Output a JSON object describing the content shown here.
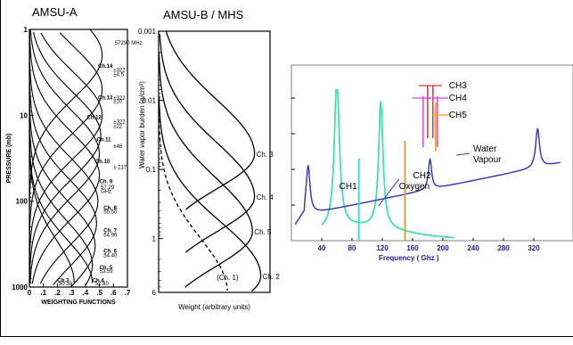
{
  "chart_data": [
    {
      "id": "amsu-a",
      "type": "line",
      "title": "AMSU-A",
      "xlabel": "WEIGHTING FUNCTIONS",
      "ylabel": "PRESSURE (mb)",
      "x_ticks": [
        "0",
        ".1",
        ".2",
        ".3",
        ".4",
        ".5",
        ".6",
        ".7"
      ],
      "y_ticks": [
        "1",
        "10",
        "100",
        "1000"
      ],
      "xlim": [
        0,
        0.7
      ],
      "ylim": [
        1000,
        1
      ],
      "y_scale": "log",
      "series": [
        {
          "name": "Ch.14",
          "peak_p": 2,
          "peak_w": 0.52
        },
        {
          "name": "Ch.13",
          "peak_p": 5,
          "peak_w": 0.52
        },
        {
          "name": "Ch.12",
          "peak_p": 10,
          "peak_w": 0.52
        },
        {
          "name": "Ch.11",
          "peak_p": 17,
          "peak_w": 0.51
        },
        {
          "name": "Ch.10",
          "peak_p": 28,
          "peak_w": 0.5
        },
        {
          "name": "Ch.9",
          "peak_p": 50,
          "peak_w": 0.5
        },
        {
          "name": "Ch.8",
          "peak_p": 100,
          "peak_w": 0.49
        },
        {
          "name": "Ch.7",
          "peak_p": 180,
          "peak_w": 0.48
        },
        {
          "name": "Ch.6",
          "peak_p": 330,
          "peak_w": 0.47
        },
        {
          "name": "Ch.5",
          "peak_p": 550,
          "peak_w": 0.45
        },
        {
          "name": "Ch.4",
          "peak_p": 900,
          "peak_w": 0.45
        },
        {
          "name": "Ch.3",
          "peak_p": 900,
          "peak_w": 0.32
        }
      ],
      "labels": [
        {
          "text": "Ch.14",
          "p": 2.8,
          "w": 0.49
        },
        {
          "text": "Ch.13",
          "p": 6.5,
          "w": 0.49
        },
        {
          "text": "Ch.12",
          "p": 11,
          "w": 0.41
        },
        {
          "text": "Ch.11",
          "p": 20,
          "w": 0.48
        },
        {
          "text": "Ch.10",
          "p": 36,
          "w": 0.47
        },
        {
          "text": "Ch. 9",
          "p": 62,
          "w": 0.5
        },
        {
          "text": "Ch. 8",
          "p": 125,
          "w": 0.53
        },
        {
          "text": "Ch. 7",
          "p": 230,
          "w": 0.53
        },
        {
          "text": "Ch. 6",
          "p": 400,
          "w": 0.53
        },
        {
          "text": "Ch. 5",
          "p": 620,
          "w": 0.5
        },
        {
          "text": "Ch.3",
          "p": 880,
          "w": 0.2
        },
        {
          "text": "Ch.4",
          "p": 880,
          "w": 0.45
        }
      ],
      "annotations": [
        {
          "text": "57290 MHz",
          "p": 1.5,
          "w": 0.61
        },
        {
          "text": "±322",
          "p": 3.1,
          "w": 0.6
        },
        {
          "text": "±4.5",
          "p": 3.5,
          "w": 0.6
        },
        {
          "text": "±322",
          "p": 6.6,
          "w": 0.6
        },
        {
          "text": "±10",
          "p": 7.2,
          "w": 0.6
        },
        {
          "text": "±322",
          "p": 12.5,
          "w": 0.6
        },
        {
          "text": "±22",
          "p": 14,
          "w": 0.6
        },
        {
          "text": "±48",
          "p": 24,
          "w": 0.6
        },
        {
          "text": "± 217",
          "p": 42,
          "w": 0.6
        },
        {
          "text": "57.29",
          "p": 72,
          "w": 0.51
        },
        {
          "text": "GHz",
          "p": 80,
          "w": 0.51
        },
        {
          "text": "55.50",
          "p": 140,
          "w": 0.53
        },
        {
          "text": "54.96",
          "p": 260,
          "w": 0.53
        },
        {
          "text": "54.40",
          "p": 450,
          "w": 0.53
        },
        {
          "text": "53.59",
          "p": 680,
          "w": 0.5
        },
        {
          "text": "52.80",
          "p": 950,
          "w": 0.47
        },
        {
          "text": "50.30",
          "p": 950,
          "w": 0.21
        }
      ]
    },
    {
      "id": "amsu-b",
      "type": "line",
      "title": "AMSU-B / MHS",
      "xlabel": "Weight (arbitrary units)",
      "ylabel": "Water vapor burden (g/cm²)",
      "y_ticks": [
        "0.001",
        "0.01",
        "0.1",
        "1",
        "6"
      ],
      "ylim": [
        6,
        0.001
      ],
      "y_scale": "log",
      "series": [
        {
          "name": "Ch. 3",
          "peak_u": 0.06,
          "peak_w": 0.92
        },
        {
          "name": "Ch. 4",
          "peak_u": 0.25,
          "peak_w": 0.92
        },
        {
          "name": "Ch. 5",
          "peak_u": 0.8,
          "peak_w": 0.9
        },
        {
          "name": "Ch. 2",
          "peak_u": 3.5,
          "peak_w": 0.98
        },
        {
          "name": "(Ch. 1)",
          "peak_u": 6,
          "peak_w": 0.66,
          "dashed": true
        }
      ]
    },
    {
      "id": "spectrum",
      "type": "line",
      "xlabel": "Frequency ( Ghz )",
      "x_ticks": [
        "40",
        "80",
        "120",
        "160",
        "200",
        "240",
        "280",
        "320"
      ],
      "xlim": [
        0,
        360
      ],
      "series": [
        {
          "name": "Oxygen",
          "color": "#40e0b0",
          "peaks": [
            60,
            118
          ]
        },
        {
          "name": "Water Vapour",
          "color": "#3030c0",
          "peaks": [
            22,
            183,
            325
          ]
        }
      ],
      "channels": [
        {
          "name": "CH1",
          "freq": 89,
          "color": "#40e0d0"
        },
        {
          "name": "CH2",
          "freq": 150,
          "color": "#d4a040"
        },
        {
          "name": "CH3",
          "freq": 183.3,
          "bandwidth": 2,
          "color": "#e03030"
        },
        {
          "name": "CH4",
          "freq": 183.3,
          "bandwidth": 6,
          "color": "#e040e0"
        },
        {
          "name": "CH5",
          "freq": 190.3,
          "color": "#f0a020"
        }
      ]
    }
  ]
}
